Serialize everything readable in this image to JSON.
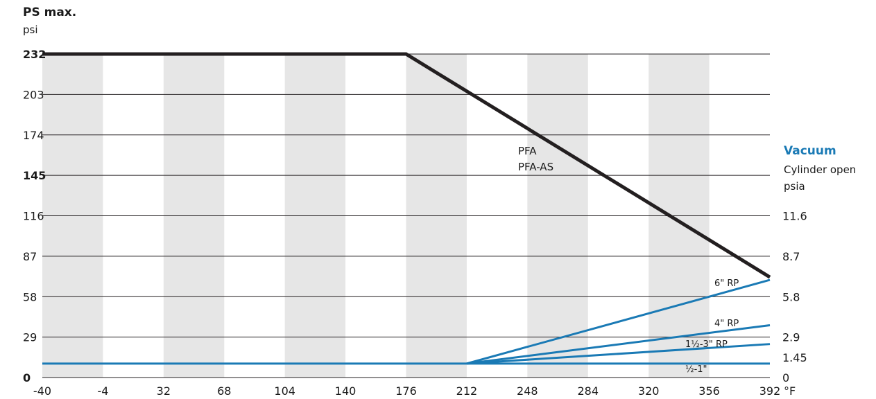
{
  "chart_data": {
    "type": "line",
    "left_axis": {
      "title": "PS max.",
      "unit": "psi",
      "ticks": [
        0,
        29,
        58,
        87,
        116,
        145,
        174,
        203,
        232
      ],
      "tick_labels": [
        "0",
        "29",
        "58",
        "87",
        "116",
        "145",
        "174",
        "203",
        "232"
      ],
      "bold_ticks": [
        "0",
        "145",
        "232"
      ],
      "ylim": [
        0,
        232
      ]
    },
    "right_axis": {
      "title": "Vacuum",
      "subtitle": "Cylinder open",
      "unit": "psia",
      "tick_labels": [
        {
          "label": "11.6",
          "left_value": 116
        },
        {
          "label": "8.7",
          "left_value": 87
        },
        {
          "label": "5.8",
          "left_value": 58
        },
        {
          "label": "2.9",
          "left_value": 29
        },
        {
          "label": "1.45",
          "left_value": 14.5
        },
        {
          "label": "0",
          "left_value": 0
        }
      ]
    },
    "x_axis": {
      "ticks": [
        -40,
        -4,
        32,
        68,
        104,
        140,
        176,
        212,
        248,
        284,
        320,
        356,
        392
      ],
      "tick_labels": [
        "-40",
        "-4",
        "32",
        "68",
        "104",
        "140",
        "176",
        "212",
        "248",
        "284",
        "320",
        "356",
        "392"
      ],
      "unit": "°F",
      "xlim": [
        -40,
        392
      ]
    },
    "grid": true,
    "shaded_bands": [
      [
        -40,
        -4
      ],
      [
        32,
        68
      ],
      [
        104,
        140
      ],
      [
        176,
        212
      ],
      [
        248,
        284
      ],
      [
        320,
        356
      ]
    ],
    "series": [
      {
        "name": "PFA",
        "name2": "PFA-AS",
        "color": "#231f20",
        "axis": "left",
        "x": [
          -40,
          176,
          392
        ],
        "y": [
          232,
          232,
          72
        ]
      },
      {
        "name": "6\" RP",
        "color": "#1a7ab5",
        "axis": "right",
        "x": [
          212,
          392
        ],
        "y": [
          1,
          7
        ]
      },
      {
        "name": "4\" RP",
        "color": "#1a7ab5",
        "axis": "right",
        "x": [
          212,
          392
        ],
        "y": [
          1,
          3.75
        ]
      },
      {
        "name": "1½-3\" RP",
        "color": "#1a7ab5",
        "axis": "right",
        "x": [
          212,
          392
        ],
        "y": [
          1,
          2.4
        ]
      },
      {
        "name": "½-1\"",
        "color": "#1a7ab5",
        "axis": "right",
        "x": [
          -40,
          392
        ],
        "y": [
          1,
          1
        ]
      }
    ],
    "colors": {
      "accent": "#1a7ab5",
      "band": "#e6e6e6",
      "grid": "#231f20"
    }
  }
}
